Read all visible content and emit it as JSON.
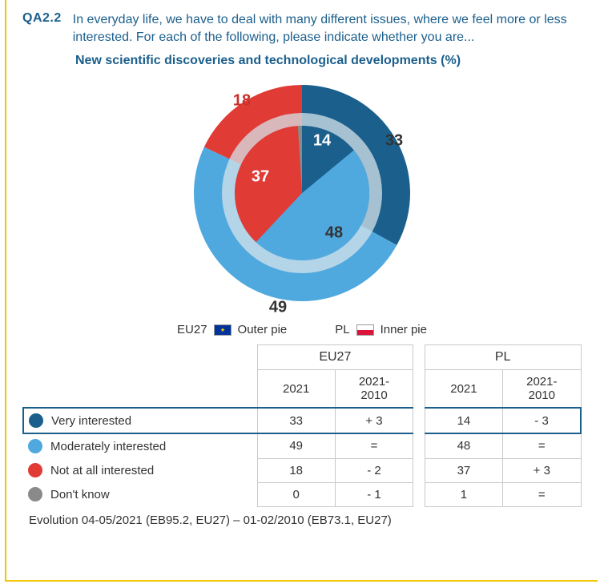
{
  "question": {
    "code": "QA2.2",
    "text": "In everyday life, we have to deal with many different issues, where we feel more or less interested. For each of the following, please indicate whether you are...",
    "subtitle": "New scientific discoveries and technological developments (%)"
  },
  "colors": {
    "very": "#1b5f8c",
    "moderately": "#4fa9df",
    "notatall": "#e13b36",
    "dontknow": "#8a8a8a",
    "ring": "#d6e3ea",
    "label_red": "#c9302c",
    "label_dark": "#333333",
    "frame": "#f5c400"
  },
  "chart": {
    "outer_label_prefix": "EU27",
    "outer_label_suffix": "Outer pie",
    "inner_label_prefix": "PL",
    "inner_label_suffix": "Inner pie",
    "outer": [
      {
        "label": "Very interested",
        "value": 33,
        "color": "#1b5f8c"
      },
      {
        "label": "Moderately interested",
        "value": 49,
        "color": "#4fa9df"
      },
      {
        "label": "Not at all interested",
        "value": 18,
        "color": "#e13b36"
      }
    ],
    "inner": [
      {
        "label": "Very interested",
        "value": 14,
        "color": "#1b5f8c"
      },
      {
        "label": "Moderately interested",
        "value": 48,
        "color": "#4fa9df"
      },
      {
        "label": "Not at all interested",
        "value": 37,
        "color": "#e13b36"
      },
      {
        "label": "Don't know",
        "value": 1,
        "color": "#8a8a8a"
      }
    ],
    "value_labels": {
      "outer": {
        "very": "33",
        "moderately": "49",
        "notatall": "18"
      },
      "inner": {
        "very": "14",
        "moderately": "48",
        "notatall": "37"
      }
    },
    "label_fontsize": 20,
    "label_fontweight": 700
  },
  "table": {
    "group_headers": [
      "EU27",
      "PL"
    ],
    "sub_headers": [
      "2021",
      "2021-\n2010",
      "2021",
      "2021-\n2010"
    ],
    "rows": [
      {
        "dot": "#1b5f8c",
        "label": "Very interested",
        "cells": [
          "33",
          "+ 3",
          "14",
          "- 3"
        ],
        "highlight": true
      },
      {
        "dot": "#4fa9df",
        "label": "Moderately interested",
        "cells": [
          "49",
          "=",
          "48",
          "="
        ],
        "highlight": false
      },
      {
        "dot": "#e13b36",
        "label": "Not at all interested",
        "cells": [
          "18",
          "- 2",
          "37",
          "+ 3"
        ],
        "highlight": false
      },
      {
        "dot": "#8a8a8a",
        "label": "Don't know",
        "cells": [
          "0",
          "- 1",
          "1",
          "="
        ],
        "highlight": false
      }
    ]
  },
  "footnote": "Evolution 04-05/2021 (EB95.2, EU27) – 01-02/2010 (EB73.1, EU27)"
}
